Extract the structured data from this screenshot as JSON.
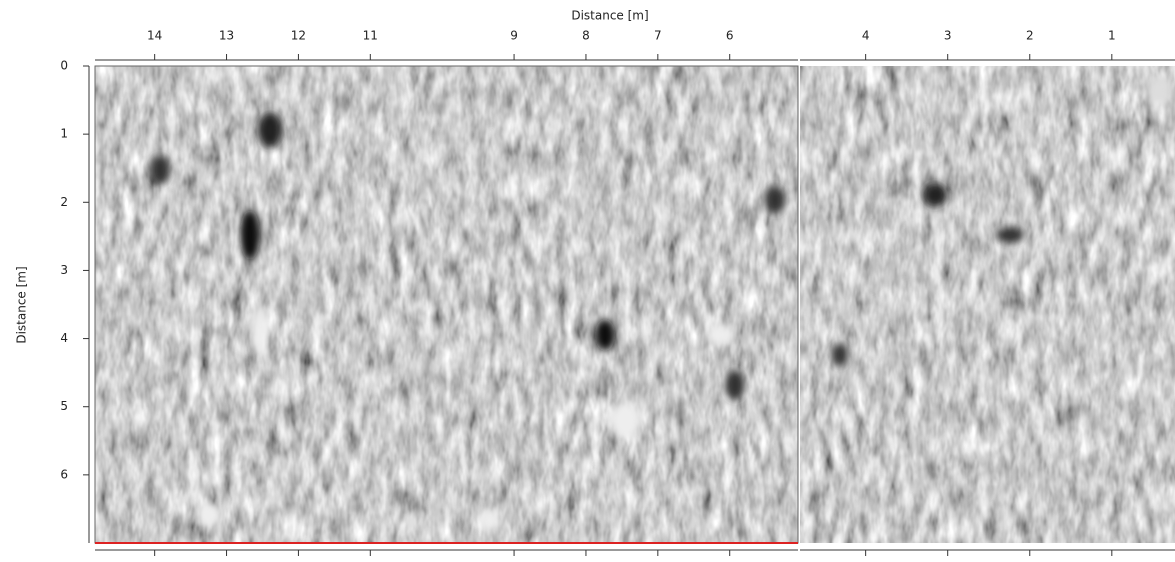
{
  "chart_data": [
    {
      "type": "image",
      "title": "Distance [m]",
      "y_label": "Distance [m]",
      "xlim": [
        14.83,
        5.05
      ],
      "xticks": [
        14,
        13,
        12,
        11,
        9,
        8,
        7,
        6
      ],
      "ylim": [
        0,
        7
      ],
      "yticks": [
        0,
        1,
        2,
        3,
        4,
        5,
        6
      ]
    },
    {
      "type": "image",
      "xlim": [
        4.8,
        0.23
      ],
      "xticks": [
        4,
        3,
        2,
        1
      ],
      "ylim": [
        0,
        7
      ]
    }
  ]
}
